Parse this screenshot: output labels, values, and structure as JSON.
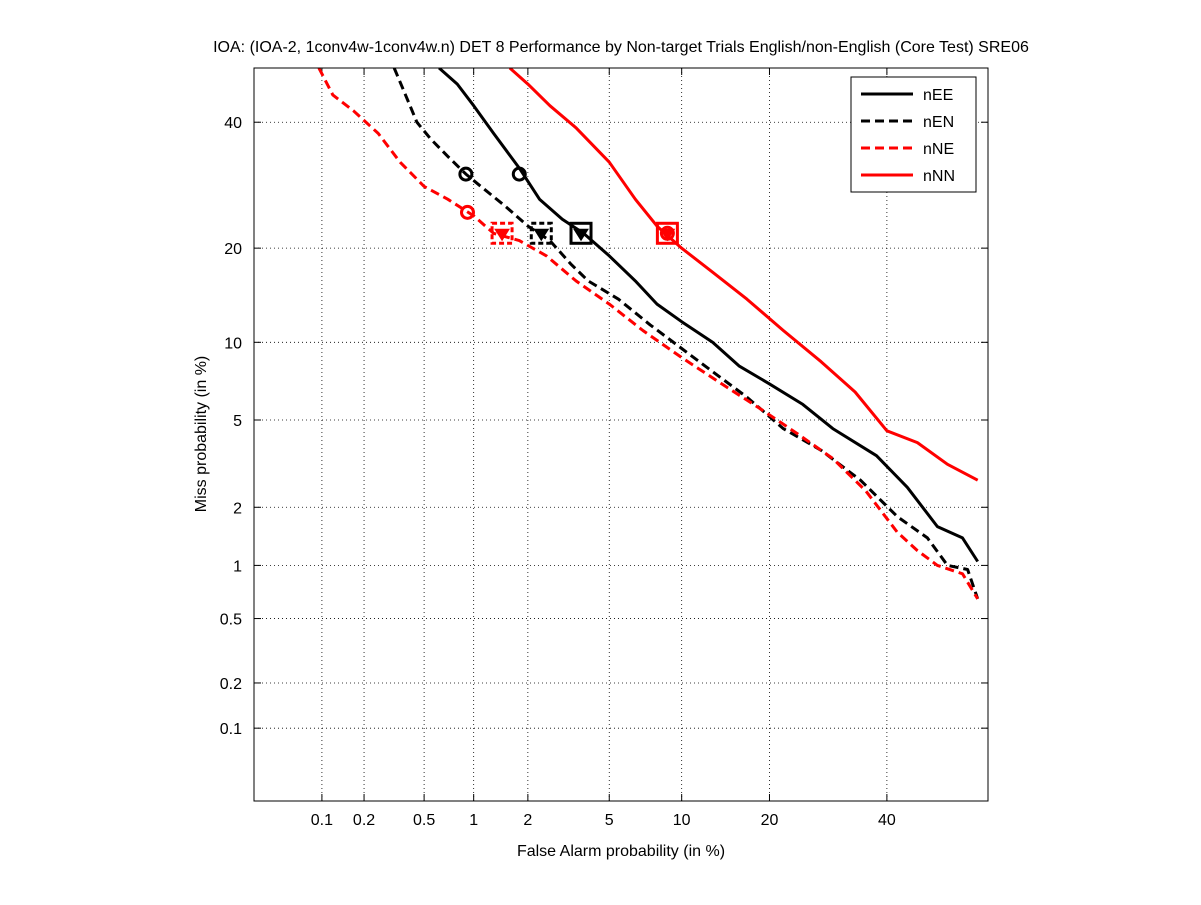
{
  "chart_data": {
    "type": "line",
    "title": "IOA: (IOA-2, 1conv4w-1conv4w.n) DET 8 Performance by Non-target Trials English/non-English (Core Test) SRE06",
    "xlabel": "False Alarm probability (in %)",
    "ylabel": "Miss probability (in %)",
    "x_scale": "probit",
    "y_scale": "probit",
    "xlim": [
      0.03,
      60
    ],
    "ylim": [
      0.03,
      50
    ],
    "xticks": [
      0.1,
      0.2,
      0.5,
      1,
      2,
      5,
      10,
      20,
      40
    ],
    "xtick_labels": [
      "0.1",
      "0.2",
      "0.5",
      "1",
      "2",
      "5",
      "10",
      "20",
      "40"
    ],
    "yticks": [
      0.1,
      0.2,
      0.5,
      1,
      2,
      5,
      10,
      20,
      40
    ],
    "ytick_labels": [
      "0.1",
      "0.2",
      "0.5",
      "1",
      "2",
      "5",
      "10",
      "20",
      "40"
    ],
    "grid": true,
    "legend_position": "top-right",
    "series": [
      {
        "name": "nEE",
        "color": "#000000",
        "dash": "solid",
        "points": [
          [
            0.62,
            50
          ],
          [
            0.8,
            47
          ],
          [
            1.0,
            43
          ],
          [
            1.3,
            38
          ],
          [
            1.8,
            32
          ],
          [
            2.3,
            27
          ],
          [
            3.0,
            24
          ],
          [
            3.8,
            22
          ],
          [
            5.0,
            19
          ],
          [
            6.5,
            16
          ],
          [
            8.0,
            13.5
          ],
          [
            10,
            11.8
          ],
          [
            13,
            10
          ],
          [
            16,
            8.2
          ],
          [
            20,
            7
          ],
          [
            25,
            5.8
          ],
          [
            30,
            4.6
          ],
          [
            38,
            3.5
          ],
          [
            44,
            2.5
          ],
          [
            50,
            1.6
          ],
          [
            55,
            1.4
          ],
          [
            58,
            1.05
          ]
        ],
        "min_dcf": [
          1.8,
          31
        ],
        "act_dcf": [
          3.7,
          22
        ]
      },
      {
        "name": "nEN",
        "color": "#000000",
        "dash": "dashed",
        "points": [
          [
            0.32,
            50
          ],
          [
            0.38,
            45
          ],
          [
            0.45,
            40
          ],
          [
            0.55,
            37
          ],
          [
            0.7,
            34
          ],
          [
            0.9,
            31
          ],
          [
            1.1,
            29
          ],
          [
            1.5,
            26
          ],
          [
            2.0,
            23
          ],
          [
            2.6,
            21
          ],
          [
            3.3,
            18
          ],
          [
            4.0,
            16
          ],
          [
            5.5,
            14
          ],
          [
            7.5,
            11.5
          ],
          [
            10,
            9.5
          ],
          [
            13,
            7.8
          ],
          [
            17,
            6.2
          ],
          [
            22,
            4.6
          ],
          [
            28,
            3.7
          ],
          [
            35,
            2.7
          ],
          [
            42,
            1.8
          ],
          [
            48,
            1.4
          ],
          [
            52,
            1.0
          ],
          [
            56,
            0.95
          ],
          [
            58,
            0.65
          ]
        ],
        "min_dcf": [
          0.9,
          31
        ],
        "act_dcf": [
          2.35,
          22
        ]
      },
      {
        "name": "nNE",
        "color": "#ff0000",
        "dash": "dashed",
        "points": [
          [
            0.095,
            50
          ],
          [
            0.12,
            45
          ],
          [
            0.17,
            42
          ],
          [
            0.25,
            38
          ],
          [
            0.35,
            33
          ],
          [
            0.5,
            29
          ],
          [
            0.7,
            27
          ],
          [
            1.0,
            24.5
          ],
          [
            1.3,
            22
          ],
          [
            1.8,
            21
          ],
          [
            2.5,
            19
          ],
          [
            3.5,
            16
          ],
          [
            5.0,
            13.5
          ],
          [
            7.0,
            11
          ],
          [
            10,
            8.8
          ],
          [
            14,
            7
          ],
          [
            19,
            5.5
          ],
          [
            24,
            4.4
          ],
          [
            30,
            3.4
          ],
          [
            36,
            2.4
          ],
          [
            42,
            1.5
          ],
          [
            46,
            1.2
          ],
          [
            50,
            1.0
          ],
          [
            55,
            0.9
          ],
          [
            58,
            0.65
          ]
        ],
        "min_dcf": [
          0.92,
          25
        ],
        "act_dcf": [
          1.45,
          22
        ]
      },
      {
        "name": "nNN",
        "color": "#ff0000",
        "dash": "solid",
        "points": [
          [
            1.6,
            50
          ],
          [
            2.0,
            47
          ],
          [
            2.6,
            43
          ],
          [
            3.5,
            39
          ],
          [
            5.0,
            33
          ],
          [
            6.5,
            27
          ],
          [
            8.0,
            23
          ],
          [
            10,
            20
          ],
          [
            13,
            17
          ],
          [
            17,
            14
          ],
          [
            22,
            11
          ],
          [
            28,
            8.5
          ],
          [
            34,
            6.5
          ],
          [
            40,
            4.5
          ],
          [
            46,
            4.0
          ],
          [
            52,
            3.2
          ],
          [
            58,
            2.7
          ]
        ],
        "min_dcf": [
          8.8,
          22
        ],
        "act_dcf": [
          8.8,
          22
        ]
      }
    ]
  }
}
